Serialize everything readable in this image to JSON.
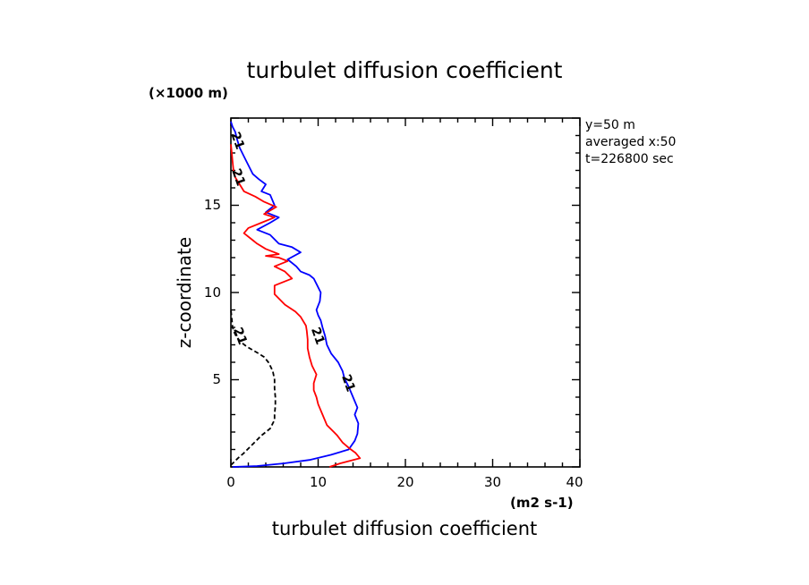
{
  "chart_data": {
    "type": "line",
    "title": "turbulet diffusion coefficient",
    "xlabel": "turbulet diffusion coefficient",
    "ylabel": "z-coordinate",
    "x_unit": "(m2 s-1)",
    "y_unit": "(×1000 m)",
    "xlim": [
      0,
      40
    ],
    "ylim": [
      0,
      20
    ],
    "x_ticks": [
      "0",
      "10",
      "20",
      "30",
      "40"
    ],
    "y_ticks": [
      "5",
      "10",
      "15"
    ],
    "info": [
      "y=50 m",
      "averaged  x:50",
      "t=226800 sec"
    ],
    "contour_label": "21",
    "series": [
      {
        "color": "#0000ff",
        "dash": "solid",
        "points": [
          [
            0.2,
            0
          ],
          [
            3,
            0.05
          ],
          [
            6,
            0.2
          ],
          [
            9,
            0.4
          ],
          [
            11.5,
            0.7
          ],
          [
            13.5,
            1.0
          ],
          [
            14.2,
            1.5
          ],
          [
            14.5,
            1.9
          ],
          [
            14.6,
            2.5
          ],
          [
            14.2,
            3.0
          ],
          [
            14.5,
            3.4
          ],
          [
            14.0,
            4.0
          ],
          [
            13.5,
            4.6
          ],
          [
            13.0,
            5.1
          ],
          [
            12.8,
            5.5
          ],
          [
            12.3,
            6.0
          ],
          [
            11.5,
            6.5
          ],
          [
            11.0,
            7.0
          ],
          [
            10.8,
            7.5
          ],
          [
            10.5,
            8.0
          ],
          [
            10.3,
            8.4
          ],
          [
            10.0,
            8.7
          ],
          [
            9.8,
            9.0
          ],
          [
            10.2,
            9.5
          ],
          [
            10.3,
            10.0
          ],
          [
            9.8,
            10.5
          ],
          [
            9.5,
            10.8
          ],
          [
            9.0,
            11.0
          ],
          [
            8.0,
            11.2
          ],
          [
            7.5,
            11.5
          ],
          [
            6.5,
            11.9
          ],
          [
            8.0,
            12.3
          ],
          [
            7.0,
            12.6
          ],
          [
            5.5,
            12.8
          ],
          [
            4.5,
            13.3
          ],
          [
            3.0,
            13.6
          ],
          [
            4.5,
            14.0
          ],
          [
            5.5,
            14.3
          ],
          [
            4.0,
            14.6
          ],
          [
            5.0,
            15.0
          ],
          [
            4.5,
            15.6
          ],
          [
            3.5,
            15.8
          ],
          [
            4.0,
            16.2
          ],
          [
            3.2,
            16.5
          ],
          [
            2.5,
            16.8
          ],
          [
            2.0,
            17.3
          ],
          [
            1.5,
            17.8
          ],
          [
            1.0,
            18.3
          ],
          [
            0.7,
            18.8
          ],
          [
            0.5,
            19.2
          ],
          [
            0.2,
            19.5
          ],
          [
            0,
            19.8
          ]
        ]
      },
      {
        "color": "#ff0000",
        "dash": "solid",
        "points": [
          [
            11.3,
            0
          ],
          [
            12.5,
            0.2
          ],
          [
            14.8,
            0.5
          ],
          [
            14.3,
            0.8
          ],
          [
            13.5,
            1.1
          ],
          [
            12.8,
            1.4
          ],
          [
            12.2,
            1.8
          ],
          [
            11.8,
            2.0
          ],
          [
            11.0,
            2.4
          ],
          [
            10.5,
            3.0
          ],
          [
            10.0,
            3.6
          ],
          [
            9.8,
            4.0
          ],
          [
            9.5,
            4.4
          ],
          [
            9.5,
            4.8
          ],
          [
            9.8,
            5.3
          ],
          [
            9.3,
            5.8
          ],
          [
            9.0,
            6.3
          ],
          [
            8.8,
            6.8
          ],
          [
            8.8,
            7.3
          ],
          [
            8.7,
            7.8
          ],
          [
            8.6,
            8.1
          ],
          [
            8.0,
            8.6
          ],
          [
            7.4,
            8.9
          ],
          [
            6.2,
            9.3
          ],
          [
            5.6,
            9.6
          ],
          [
            5.0,
            9.9
          ],
          [
            5.0,
            10.4
          ],
          [
            6.0,
            10.6
          ],
          [
            7.0,
            10.8
          ],
          [
            6.2,
            11.2
          ],
          [
            5.0,
            11.5
          ],
          [
            6.5,
            11.8
          ],
          [
            5.5,
            12.0
          ],
          [
            4.0,
            12.1
          ],
          [
            5.5,
            12.2
          ],
          [
            4.0,
            12.5
          ],
          [
            3.0,
            12.8
          ],
          [
            2.5,
            13.0
          ],
          [
            1.5,
            13.4
          ],
          [
            2.0,
            13.7
          ],
          [
            3.5,
            14.0
          ],
          [
            5.0,
            14.3
          ],
          [
            3.8,
            14.5
          ],
          [
            5.2,
            14.9
          ],
          [
            3.8,
            15.2
          ],
          [
            2.8,
            15.5
          ],
          [
            1.5,
            15.8
          ],
          [
            1.0,
            16.2
          ],
          [
            0.5,
            16.6
          ],
          [
            0.3,
            17.0
          ],
          [
            0.2,
            17.5
          ],
          [
            0.1,
            18.0
          ],
          [
            0,
            18.5
          ]
        ]
      },
      {
        "color": "#000000",
        "dash": "dashed",
        "points": [
          [
            0,
            0.1
          ],
          [
            0.8,
            0.5
          ],
          [
            1.5,
            0.8
          ],
          [
            2.5,
            1.3
          ],
          [
            3.5,
            1.8
          ],
          [
            4.5,
            2.2
          ],
          [
            5.0,
            2.7
          ],
          [
            5.0,
            3.0
          ],
          [
            5.1,
            3.5
          ],
          [
            5.1,
            4.0
          ],
          [
            5.0,
            4.5
          ],
          [
            5.0,
            5.0
          ],
          [
            4.8,
            5.5
          ],
          [
            4.5,
            5.8
          ],
          [
            4.3,
            6.0
          ],
          [
            3.8,
            6.3
          ],
          [
            3.2,
            6.5
          ],
          [
            2.5,
            6.7
          ],
          [
            1.8,
            6.9
          ],
          [
            1.3,
            7.1
          ],
          [
            0.9,
            7.3
          ],
          [
            0.6,
            7.5
          ],
          [
            0.4,
            7.7
          ],
          [
            0.2,
            8.0
          ],
          [
            0.1,
            8.5
          ],
          [
            0,
            9.0
          ]
        ]
      }
    ],
    "contour_labels_at": [
      [
        0,
        19.1
      ],
      [
        0.1,
        17.0
      ],
      [
        0.3,
        7.9
      ],
      [
        9.2,
        7.9
      ],
      [
        12.7,
        5.2
      ]
    ]
  }
}
